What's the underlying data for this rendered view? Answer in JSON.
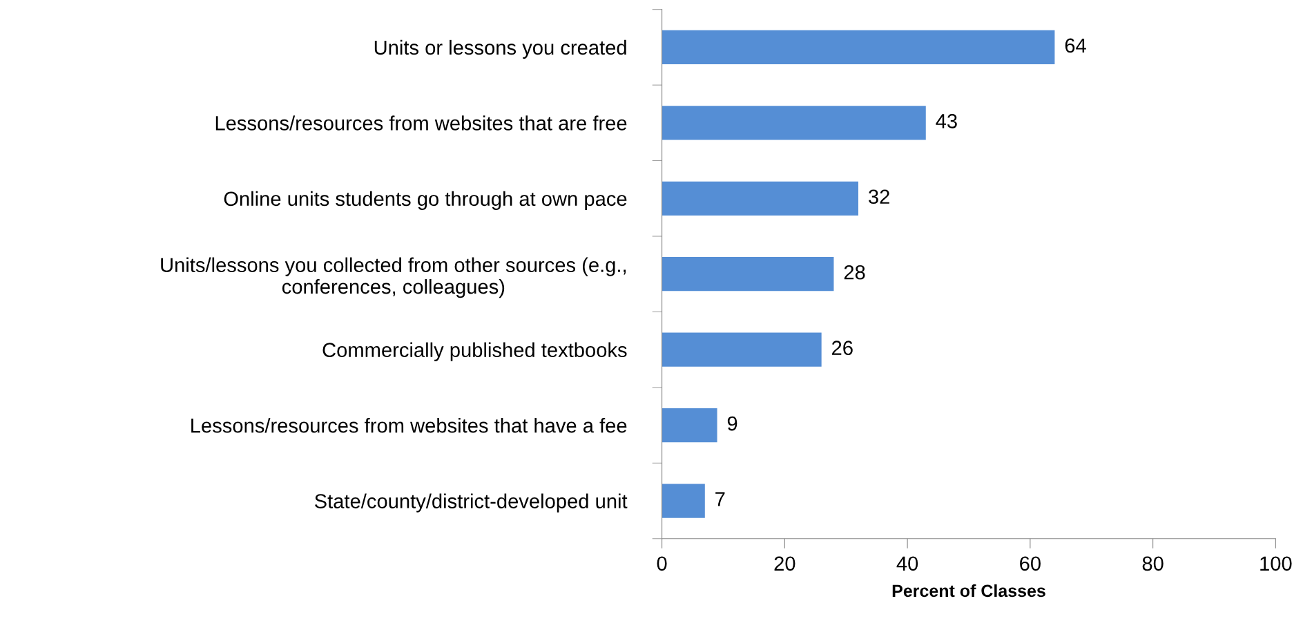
{
  "chart_data": {
    "type": "bar",
    "orientation": "horizontal",
    "xlabel": "Percent of Classes",
    "categories": [
      "Units or lessons you created",
      "Lessons/resources from websites that are free",
      "Online units students go through at own pace",
      "Units/lessons you collected from other sources (e.g.,\nconferences, colleagues)",
      "Commercially published textbooks",
      "Lessons/resources from websites that have a fee",
      "State/county/district-developed unit"
    ],
    "values": [
      64,
      43,
      32,
      28,
      26,
      9,
      7
    ],
    "color": "#558ed5",
    "xlim": [
      0,
      100
    ],
    "xticks": [
      0,
      20,
      40,
      60,
      80,
      100
    ],
    "grid": false,
    "data_labels": true
  }
}
